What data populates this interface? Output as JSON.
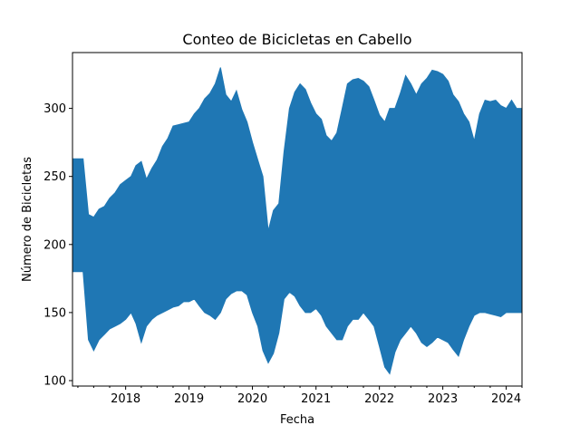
{
  "chart_data": {
    "type": "area",
    "title": "Conteo de Bicicletas en Cabello",
    "xlabel": "Fecha",
    "ylabel": "Número de Bicicletas",
    "xlim": [
      "2017-03-01",
      "2024-04-01"
    ],
    "ylim": [
      96,
      341
    ],
    "x_tick_labels": [
      "2018",
      "2019",
      "2020",
      "2021",
      "2022",
      "2023",
      "2024"
    ],
    "y_ticks": [
      100,
      150,
      200,
      250,
      300
    ],
    "grid": false,
    "color": "#1f77b4",
    "series": [
      {
        "x": [
          "2017-03-01",
          "2017-04-01",
          "2017-05-01",
          "2017-06-01",
          "2017-07-01",
          "2017-08-01",
          "2017-09-01",
          "2017-10-01",
          "2017-11-01",
          "2017-12-01",
          "2018-01-01",
          "2018-02-01",
          "2018-03-01",
          "2018-04-01",
          "2018-05-01",
          "2018-06-01",
          "2018-07-01",
          "2018-08-01",
          "2018-09-01",
          "2018-10-01",
          "2018-11-01",
          "2018-12-01",
          "2019-01-01",
          "2019-02-01",
          "2019-03-01",
          "2019-04-01",
          "2019-05-01",
          "2019-06-01",
          "2019-07-01",
          "2019-08-01",
          "2019-09-01",
          "2019-10-01",
          "2019-11-01",
          "2019-12-01",
          "2020-01-01",
          "2020-02-01",
          "2020-03-01",
          "2020-04-01",
          "2020-05-01",
          "2020-06-01",
          "2020-07-01",
          "2020-08-01",
          "2020-09-01",
          "2020-10-01",
          "2020-11-01",
          "2020-12-01",
          "2021-01-01",
          "2021-02-01",
          "2021-03-01",
          "2021-04-01",
          "2021-05-01",
          "2021-06-01",
          "2021-07-01",
          "2021-08-01",
          "2021-09-01",
          "2021-10-01",
          "2021-11-01",
          "2021-12-01",
          "2022-01-01",
          "2022-02-01",
          "2022-03-01",
          "2022-04-01",
          "2022-05-01",
          "2022-06-01",
          "2022-07-01",
          "2022-08-01",
          "2022-09-01",
          "2022-10-01",
          "2022-11-01",
          "2022-12-01",
          "2023-01-01",
          "2023-02-01",
          "2023-03-01",
          "2023-04-01",
          "2023-05-01",
          "2023-06-01",
          "2023-07-01",
          "2023-08-01",
          "2023-09-01",
          "2023-10-01",
          "2023-11-01",
          "2023-12-01",
          "2024-01-01",
          "2024-02-01",
          "2024-03-01",
          "2024-04-01"
        ],
        "y_max": [
          263,
          263,
          263,
          222,
          220,
          226,
          228,
          234,
          238,
          244,
          247,
          250,
          258,
          261,
          248,
          256,
          262,
          272,
          278,
          287,
          288,
          289,
          290,
          296,
          300,
          307,
          311,
          318,
          330,
          310,
          305,
          313,
          299,
          290,
          275,
          262,
          250,
          210,
          225,
          230,
          268,
          300,
          312,
          318,
          314,
          304,
          296,
          292,
          280,
          276,
          282,
          300,
          318,
          321,
          322,
          320,
          316,
          306,
          295,
          290,
          300,
          300,
          311,
          324,
          318,
          310,
          318,
          322,
          328,
          327,
          325,
          320,
          310,
          305,
          296,
          290,
          276,
          296,
          306,
          305,
          306,
          302,
          300,
          306,
          300,
          300
        ],
        "y_min": [
          180,
          180,
          180,
          130,
          122,
          130,
          134,
          138,
          140,
          142,
          145,
          150,
          142,
          128,
          140,
          145,
          148,
          150,
          152,
          154,
          155,
          158,
          158,
          160,
          155,
          150,
          148,
          145,
          150,
          160,
          164,
          166,
          166,
          163,
          150,
          140,
          122,
          113,
          120,
          135,
          160,
          165,
          162,
          155,
          150,
          150,
          153,
          148,
          140,
          135,
          130,
          130,
          140,
          145,
          145,
          150,
          145,
          140,
          125,
          110,
          105,
          121,
          130,
          135,
          140,
          135,
          128,
          125,
          128,
          132,
          130,
          128,
          123,
          118,
          130,
          140,
          148,
          150,
          150,
          149,
          148,
          147,
          150,
          150,
          150,
          150
        ]
      }
    ]
  }
}
